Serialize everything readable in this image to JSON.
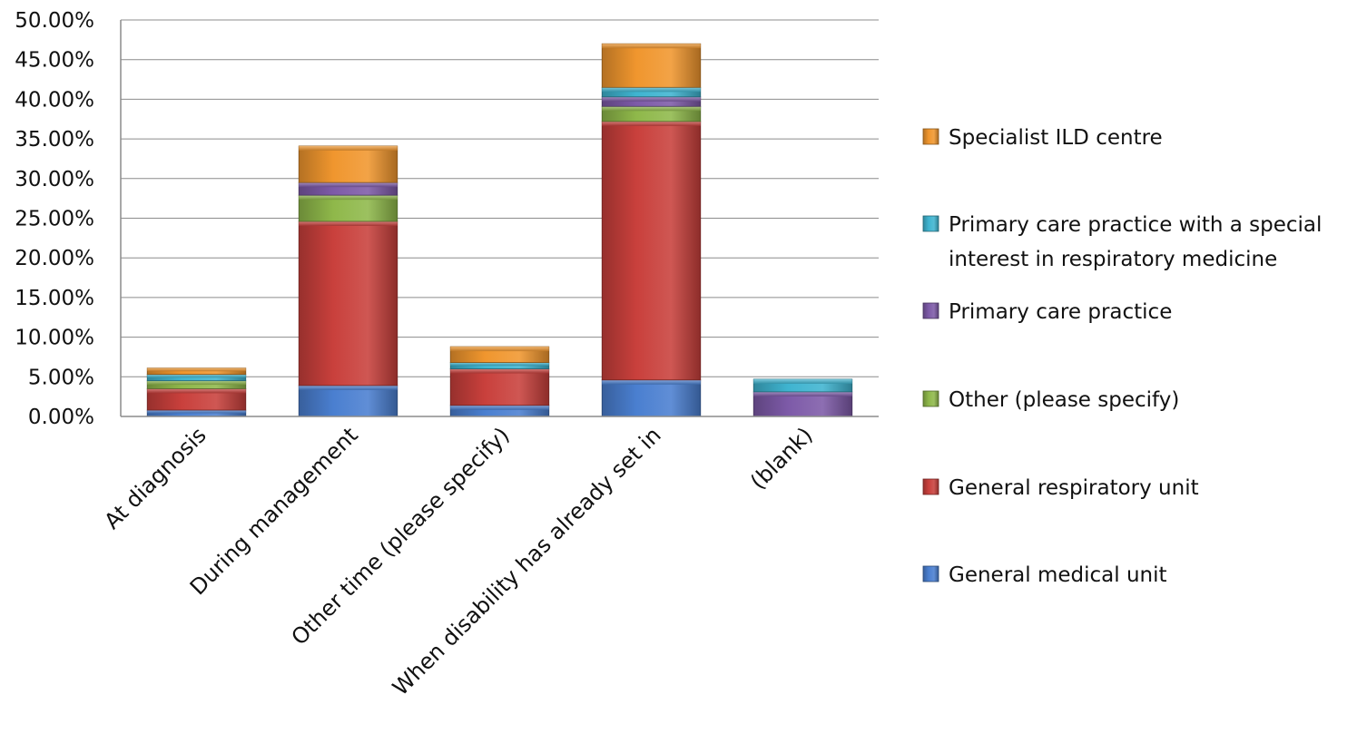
{
  "chart_data": {
    "type": "bar",
    "stacked": true,
    "categories": [
      "At diagnosis",
      "During management",
      "Other time (please specify)",
      "When disability has already set in",
      "(blank)"
    ],
    "series": [
      {
        "name": "General medical unit",
        "color": "#4a7fd0",
        "values": [
          0.8,
          3.9,
          1.4,
          4.6,
          0
        ]
      },
      {
        "name": "General respiratory unit",
        "color": "#c9403c",
        "values": [
          2.7,
          20.7,
          4.6,
          32.6,
          0
        ]
      },
      {
        "name": "Other (please specify)",
        "color": "#8fb84a",
        "values": [
          1.0,
          3.3,
          0,
          1.9,
          0
        ]
      },
      {
        "name": "Primary care practice",
        "color": "#7d5aa8",
        "values": [
          0,
          1.6,
          0,
          1.2,
          3.1
        ]
      },
      {
        "name": "Primary care practice with a special interest in respiratory medicine",
        "color": "#3fb4d0",
        "values": [
          0.8,
          0,
          0.8,
          1.2,
          1.6
        ]
      },
      {
        "name": "Specialist ILD centre",
        "color": "#f0962e",
        "values": [
          0.8,
          4.6,
          2.0,
          5.5,
          0
        ]
      }
    ],
    "yticks": [
      "0.00%",
      "5.00%",
      "10.00%",
      "15.00%",
      "20.00%",
      "25.00%",
      "30.00%",
      "35.00%",
      "40.00%",
      "45.00%",
      "50.00%"
    ],
    "ylim": [
      0,
      50
    ],
    "grid": true,
    "legend_position": "right",
    "legend_order": [
      "Specialist ILD centre",
      "Primary care practice with a special interest in respiratory medicine",
      "Primary care practice",
      "Other (please specify)",
      "General respiratory unit",
      "General medical unit"
    ],
    "legend_lines": [
      [
        "Specialist ILD centre"
      ],
      [
        "Primary care practice with a special",
        "interest in respiratory medicine"
      ],
      [
        "Primary care practice"
      ],
      [
        "Other (please specify)"
      ],
      [
        "General respiratory unit"
      ],
      [
        "General medical unit"
      ]
    ]
  }
}
